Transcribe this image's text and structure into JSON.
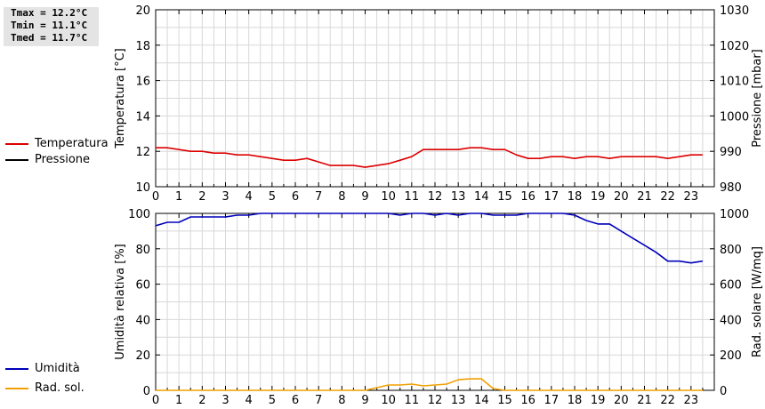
{
  "stats": {
    "tmax": "Tmax = 12.2°C",
    "tmin": "Tmin = 11.1°C",
    "tmed": "Tmed = 11.7°C"
  },
  "colors": {
    "temperature": "#dd0000",
    "pressure": "#000000",
    "humidity": "#0000bb",
    "solar": "#f0a000",
    "grid": "#d8d8d8"
  },
  "chart_data": [
    {
      "type": "line",
      "x_ticks": [
        "0",
        "1",
        "2",
        "3",
        "4",
        "5",
        "6",
        "7",
        "8",
        "9",
        "10",
        "11",
        "12",
        "13",
        "14",
        "15",
        "16",
        "17",
        "18",
        "19",
        "20",
        "21",
        "22",
        "23"
      ],
      "xlim": [
        0,
        24
      ],
      "ylabel": "Temperatura [°C]",
      "ylim": [
        10,
        20
      ],
      "y_ticks": [
        "10",
        "12",
        "14",
        "16",
        "18",
        "20"
      ],
      "y2label": "Pressione [mbar]",
      "y2lim": [
        980,
        1030
      ],
      "y2_ticks": [
        "980",
        "990",
        "1000",
        "1010",
        "1020",
        "1030"
      ],
      "grid": true,
      "legend": [
        "Temperatura",
        "Pressione"
      ],
      "series": [
        {
          "name": "Temperatura",
          "axis": "left",
          "x": [
            0,
            0.5,
            1,
            1.5,
            2,
            2.5,
            3,
            3.5,
            4,
            4.5,
            5,
            5.5,
            6,
            6.5,
            7,
            7.5,
            8,
            8.5,
            9,
            9.5,
            10,
            10.5,
            11,
            11.5,
            12,
            12.5,
            13,
            13.5,
            14,
            14.5,
            15,
            15.5,
            16,
            16.5,
            17,
            17.5,
            18,
            18.5,
            19,
            19.5,
            20,
            20.5,
            21,
            21.5,
            22,
            22.5,
            23,
            23.5
          ],
          "y": [
            12.2,
            12.2,
            12.1,
            12.0,
            12.0,
            11.9,
            11.9,
            11.8,
            11.8,
            11.7,
            11.6,
            11.5,
            11.5,
            11.6,
            11.4,
            11.2,
            11.2,
            11.2,
            11.1,
            11.2,
            11.3,
            11.5,
            11.7,
            12.1,
            12.1,
            12.1,
            12.1,
            12.2,
            12.2,
            12.1,
            12.1,
            11.8,
            11.6,
            11.6,
            11.7,
            11.7,
            11.6,
            11.7,
            11.7,
            11.6,
            11.7,
            11.7,
            11.7,
            11.7,
            11.6,
            11.7,
            11.8,
            11.8
          ]
        },
        {
          "name": "Pressione",
          "axis": "right",
          "x": [],
          "y": []
        }
      ]
    },
    {
      "type": "line",
      "x_ticks": [
        "0",
        "1",
        "2",
        "3",
        "4",
        "5",
        "6",
        "7",
        "8",
        "9",
        "10",
        "11",
        "12",
        "13",
        "14",
        "15",
        "16",
        "17",
        "18",
        "19",
        "20",
        "21",
        "22",
        "23"
      ],
      "xlim": [
        0,
        24
      ],
      "ylabel": "Umidità relativa [%]",
      "ylim": [
        0,
        100
      ],
      "y_ticks": [
        "0",
        "20",
        "40",
        "60",
        "80",
        "100"
      ],
      "y2label": "Rad. solare [W/mq]",
      "y2lim": [
        0,
        1000
      ],
      "y2_ticks": [
        "0",
        "200",
        "400",
        "600",
        "800",
        "1000"
      ],
      "grid": true,
      "legend": [
        "Umidità",
        "Rad. sol."
      ],
      "series": [
        {
          "name": "Umidità",
          "axis": "left",
          "x": [
            0,
            0.5,
            1,
            1.5,
            2,
            2.5,
            3,
            3.5,
            4,
            4.5,
            5,
            5.5,
            6,
            6.5,
            7,
            7.5,
            8,
            8.5,
            9,
            9.5,
            10,
            10.5,
            11,
            11.5,
            12,
            12.5,
            13,
            13.5,
            14,
            14.5,
            15,
            15.5,
            16,
            16.5,
            17,
            17.5,
            18,
            18.5,
            19,
            19.5,
            20,
            20.5,
            21,
            21.5,
            22,
            22.5,
            23,
            23.5
          ],
          "y": [
            93,
            95,
            95,
            98,
            98,
            98,
            98,
            99,
            99,
            100,
            100,
            100,
            100,
            100,
            100,
            100,
            100,
            100,
            100,
            100,
            100,
            99,
            100,
            100,
            99,
            100,
            99,
            100,
            100,
            99,
            99,
            99,
            100,
            100,
            100,
            100,
            99,
            96,
            94,
            94,
            90,
            86,
            82,
            78,
            73,
            73,
            72,
            73
          ]
        },
        {
          "name": "Rad. sol.",
          "axis": "right",
          "x": [
            0,
            0.5,
            1,
            1.5,
            2,
            2.5,
            3,
            3.5,
            4,
            4.5,
            5,
            5.5,
            6,
            6.5,
            7,
            7.5,
            8,
            8.5,
            9,
            9.5,
            10,
            10.5,
            11,
            11.5,
            12,
            12.5,
            13,
            13.5,
            14,
            14.5,
            15,
            15.5,
            16,
            16.5,
            17,
            17.5,
            18,
            18.5,
            19,
            19.5,
            20,
            20.5,
            21,
            21.5,
            22,
            22.5,
            23,
            23.5
          ],
          "y": [
            0,
            0,
            0,
            0,
            0,
            0,
            0,
            0,
            0,
            0,
            0,
            0,
            0,
            0,
            0,
            0,
            0,
            0,
            0,
            15,
            30,
            30,
            35,
            25,
            30,
            35,
            60,
            65,
            65,
            10,
            0,
            0,
            0,
            0,
            0,
            0,
            0,
            0,
            0,
            0,
            0,
            0,
            0,
            0,
            0,
            0,
            0,
            0
          ]
        }
      ]
    }
  ]
}
